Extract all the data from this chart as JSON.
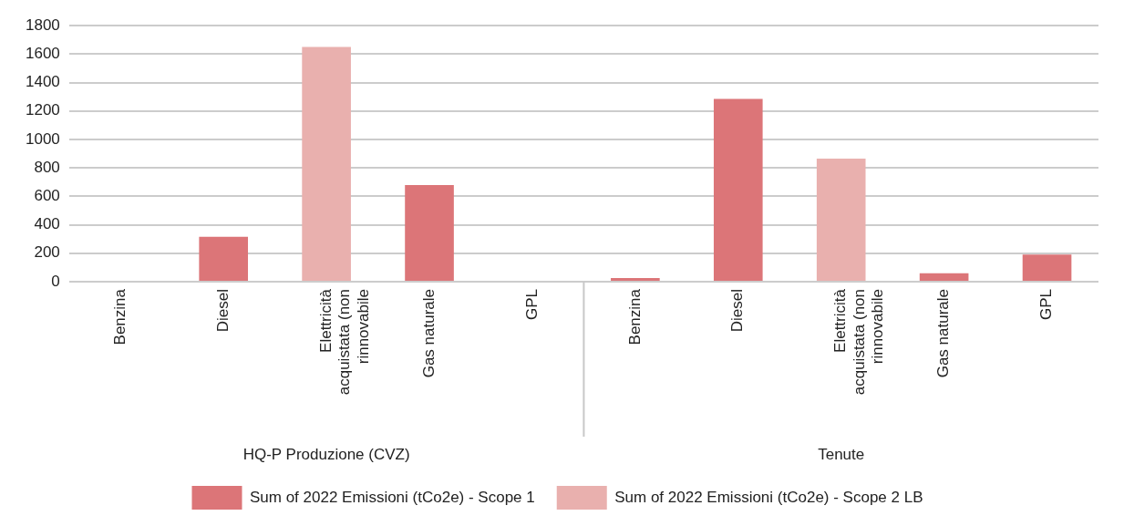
{
  "chart_data": {
    "type": "bar",
    "categories": [
      "Benzina",
      "Diesel",
      "Elettricità acquistata (non rinnovabile",
      "Gas naturale",
      "GPL",
      "Benzina",
      "Diesel",
      "Elettricità acquistata (non rinnovabile",
      "Gas naturale",
      "GPL"
    ],
    "series": [
      {
        "name": "Sum of 2022 Emissioni (tCo2e) - Scope 1",
        "color": "#dc7578",
        "values": [
          null,
          315,
          null,
          680,
          null,
          25,
          1285,
          null,
          60,
          190
        ]
      },
      {
        "name": "Sum of 2022 Emissioni (tCo2e) - Scope 2 LB",
        "color": "#e9b0ae",
        "values": [
          null,
          null,
          1650,
          null,
          null,
          null,
          null,
          865,
          null,
          null
        ]
      }
    ],
    "ylim": [
      0,
      1800
    ],
    "yticks": [
      0,
      200,
      400,
      600,
      800,
      1000,
      1200,
      1400,
      1600,
      1800
    ],
    "grid": "y",
    "legend": "bottom",
    "annotations": [
      "HQ-P Produzione (CVZ)",
      "Tenute"
    ]
  }
}
